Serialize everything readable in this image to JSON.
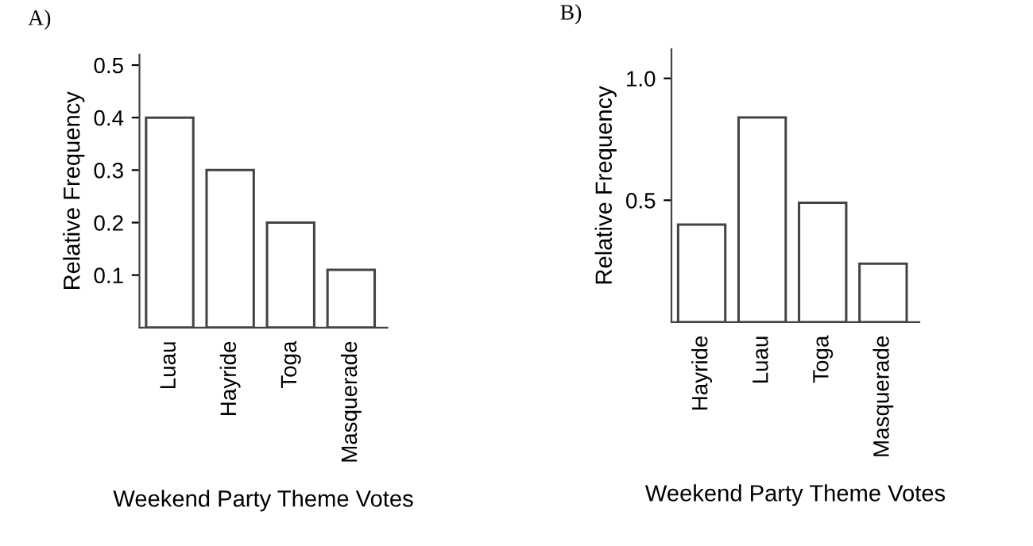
{
  "chart_data": [
    {
      "type": "bar",
      "title": "A)",
      "xlabel": "Weekend Party Theme Votes",
      "ylabel": "Relative Frequency",
      "categories": [
        "Luau",
        "Hayride",
        "Toga",
        "Masquerade"
      ],
      "values": [
        0.4,
        0.3,
        0.2,
        0.11
      ],
      "color": "#ffffff",
      "ylim": [
        0,
        0.52
      ],
      "yticks": [
        0.1,
        0.2,
        0.3,
        0.4,
        0.5
      ],
      "grid": false
    },
    {
      "type": "bar",
      "title": "B)",
      "xlabel": "Weekend Party Theme Votes",
      "ylabel": "Relative Frequency",
      "categories": [
        "Hayride",
        "Luau",
        "Toga",
        "Masquerade"
      ],
      "values": [
        0.4,
        0.84,
        0.49,
        0.24
      ],
      "color": "#ffffff",
      "ylim": [
        0,
        1.12
      ],
      "yticks": [
        0.5,
        {
          "value": 1.0,
          "label": "1.0"
        }
      ],
      "grid": false
    }
  ]
}
